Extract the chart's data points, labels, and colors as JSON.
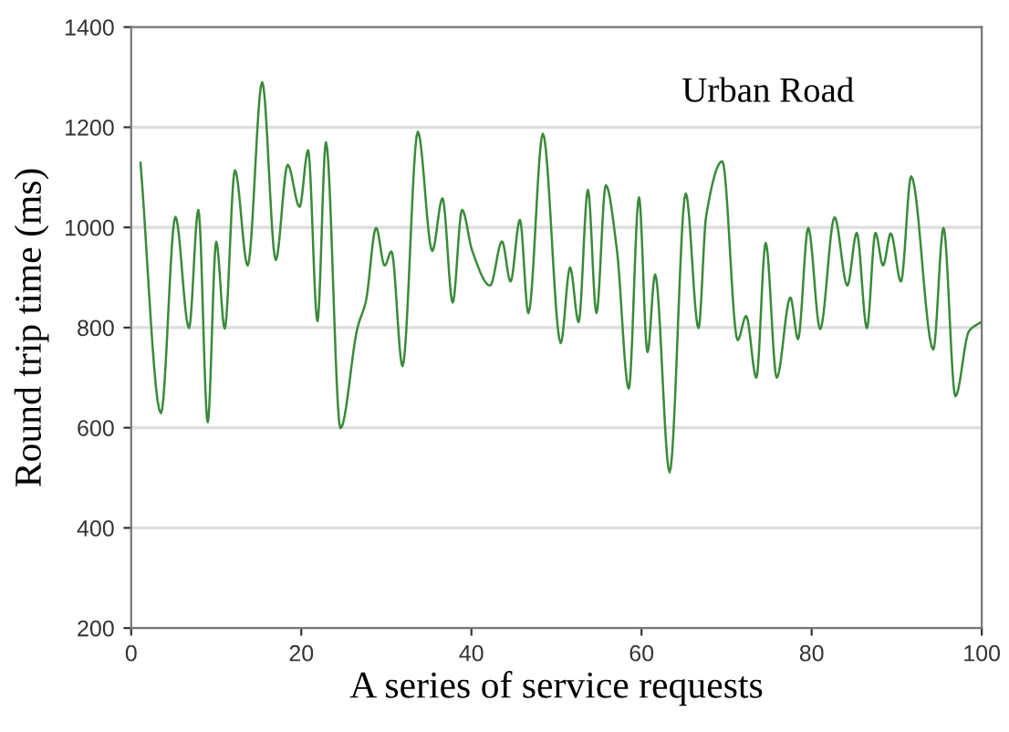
{
  "chart_data": {
    "type": "line",
    "xlabel": "A series of service requests",
    "ylabel": "Round trip time (ms)",
    "annotations": [
      "Urban Road"
    ],
    "xlim": [
      0,
      100
    ],
    "xticks": [
      0,
      20,
      40,
      60,
      80,
      100
    ],
    "ylim": [
      200,
      1400
    ],
    "yticks": [
      200,
      400,
      600,
      800,
      1000,
      1200,
      1400
    ],
    "grid": "y",
    "marker": "none",
    "line_style": "solid",
    "series": [
      {
        "color": "#3a8a3a",
        "x": [
          1.1,
          3.5,
          5.2,
          6.8,
          7.9,
          9.0,
          10.0,
          11.0,
          12.2,
          13.7,
          15.4,
          17.0,
          18.4,
          19.8,
          20.8,
          21.9,
          22.9,
          24.6,
          26.6,
          27.6,
          28.8,
          29.8,
          30.6,
          31.9,
          33.7,
          35.4,
          36.6,
          37.8,
          38.9,
          40.1,
          42.2,
          43.6,
          44.6,
          45.7,
          46.7,
          48.4,
          50.5,
          51.6,
          52.6,
          53.7,
          54.7,
          55.8,
          57.1,
          58.5,
          59.7,
          60.7,
          61.6,
          63.3,
          65.2,
          66.7,
          67.6,
          69.5,
          71.3,
          72.3,
          73.5,
          74.6,
          75.9,
          77.5,
          78.4,
          79.6,
          81.0,
          82.7,
          84.2,
          85.3,
          86.5,
          87.5,
          88.4,
          89.3,
          90.5,
          91.7,
          94.3,
          95.5,
          96.9,
          98.5,
          100
        ],
        "values": [
          1129,
          629,
          1021,
          799,
          1035,
          611,
          971,
          798,
          1114,
          924,
          1290,
          935,
          1125,
          1041,
          1154,
          813,
          1170,
          599,
          799,
          853,
          999,
          924,
          952,
          723,
          1191,
          953,
          1058,
          850,
          1035,
          953,
          884,
          972,
          892,
          1015,
          829,
          1187,
          769,
          920,
          811,
          1075,
          829,
          1084,
          956,
          678,
          1060,
          751,
          906,
          511,
          1068,
          799,
          1023,
          1132,
          775,
          823,
          700,
          969,
          700,
          860,
          777,
          999,
          797,
          1020,
          884,
          989,
          799,
          989,
          924,
          988,
          892,
          1102,
          756,
          999,
          663,
          793,
          812
        ]
      }
    ]
  }
}
